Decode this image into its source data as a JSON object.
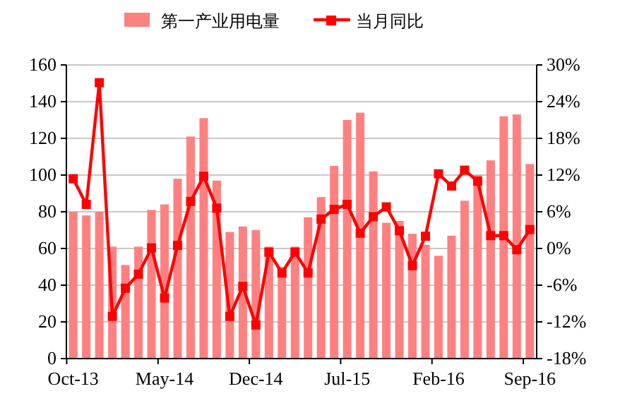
{
  "chart_data": {
    "type": "bar",
    "categories": [
      "Oct-13",
      null,
      null,
      null,
      null,
      null,
      null,
      "May-14",
      null,
      null,
      null,
      null,
      null,
      null,
      "Dec-14",
      null,
      null,
      null,
      null,
      null,
      null,
      "Jul-15",
      null,
      null,
      null,
      null,
      null,
      null,
      "Feb-16",
      null,
      null,
      null,
      null,
      null,
      null,
      "Sep-16"
    ],
    "series": [
      {
        "name": "第一产业用电量",
        "color": "#ff8080",
        "values": [
          80,
          78,
          80,
          61,
          51,
          61,
          81,
          84,
          98,
          121,
          131,
          97,
          69,
          72,
          70,
          61,
          50,
          61,
          77,
          88,
          105,
          130,
          134,
          102,
          74,
          75,
          68,
          62,
          56,
          67,
          86,
          100,
          108,
          132,
          133,
          106
        ]
      },
      {
        "name": "当月同比",
        "type": "line",
        "axis": "y2",
        "color": "#ff0000",
        "marker": "square",
        "values": [
          11.4,
          7.2,
          27.1,
          -11.1,
          -6.5,
          -4.2,
          0.1,
          -8.1,
          0.5,
          7.7,
          11.8,
          6.6,
          -11.1,
          -6.2,
          -12.5,
          -0.6,
          -4.0,
          -0.6,
          -4.0,
          4.8,
          6.4,
          7.2,
          2.5,
          5.2,
          6.8,
          2.9,
          -2.8,
          2.0,
          12.2,
          10.2,
          12.8,
          11.0,
          2.1,
          2.1,
          -0.2,
          3.1
        ]
      }
    ],
    "ylim": [
      0,
      160
    ],
    "yticks": [
      0,
      20,
      40,
      60,
      80,
      100,
      120,
      140,
      160
    ],
    "y2lim": [
      -18,
      30
    ],
    "y2ticks": [
      {
        "value": -18,
        "label": "-18%"
      },
      {
        "value": -12,
        "label": "-12%"
      },
      {
        "value": -6,
        "label": "-6%"
      },
      {
        "value": 0,
        "label": "0%"
      },
      {
        "value": 6,
        "label": "6%"
      },
      {
        "value": 12,
        "label": "12%"
      },
      {
        "value": 18,
        "label": "18%"
      },
      {
        "value": 24,
        "label": "24%"
      },
      {
        "value": 30,
        "label": "30%"
      }
    ],
    "grid": "y",
    "legend": "top"
  }
}
